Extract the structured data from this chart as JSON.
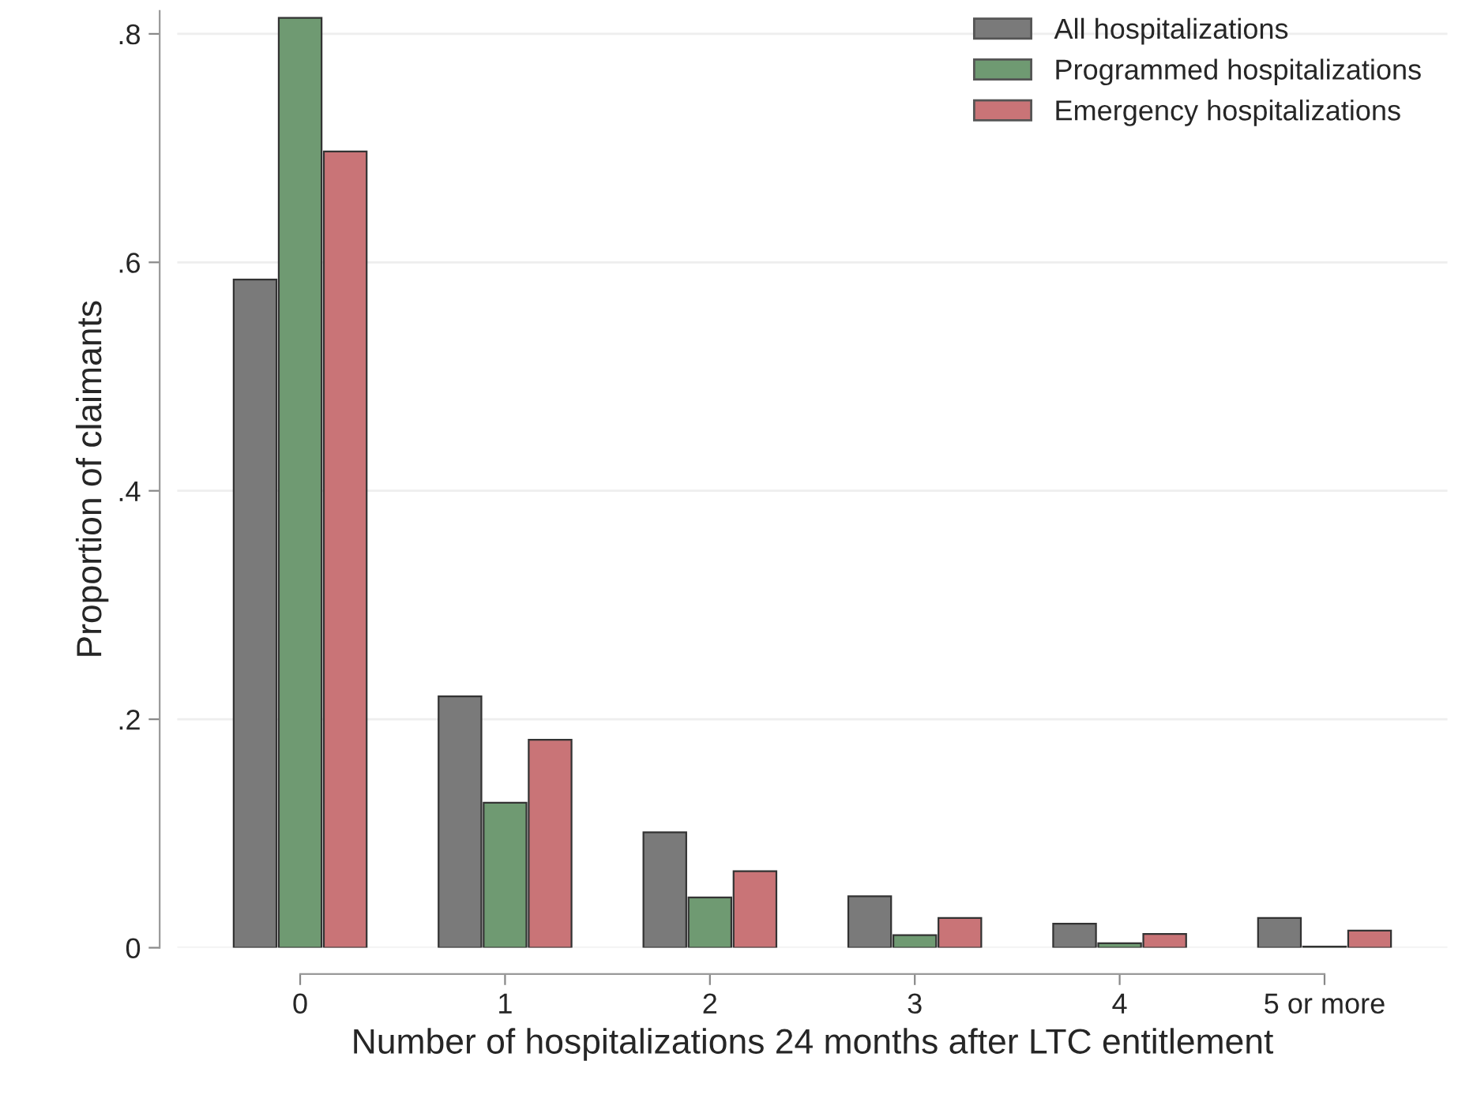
{
  "chart_data": {
    "type": "bar",
    "xlabel": "Number of hospitalizations 24 months after LTC entitlement",
    "ylabel": "Proportion of claimants",
    "categories": [
      "0",
      "1",
      "2",
      "3",
      "4",
      "5 or more"
    ],
    "series": [
      {
        "name": "All hospitalizations",
        "color": "#7a7a7a",
        "values": [
          0.585,
          0.22,
          0.101,
          0.045,
          0.021,
          0.026
        ]
      },
      {
        "name": "Programmed hospitalizations",
        "color": "#6f9a72",
        "values": [
          0.814,
          0.127,
          0.044,
          0.011,
          0.004,
          0.001
        ]
      },
      {
        "name": "Emergency hospitalizations",
        "color": "#c97477",
        "values": [
          0.697,
          0.182,
          0.067,
          0.026,
          0.012,
          0.015
        ]
      }
    ],
    "ylim": [
      0,
      0.82
    ],
    "yticks": [
      {
        "value": 0,
        "label": "0"
      },
      {
        "value": 0.2,
        "label": ".2"
      },
      {
        "value": 0.4,
        "label": ".4"
      },
      {
        "value": 0.6,
        "label": ".6"
      },
      {
        "value": 0.8,
        "label": ".8"
      }
    ],
    "grid": "y",
    "legend": "top right"
  }
}
